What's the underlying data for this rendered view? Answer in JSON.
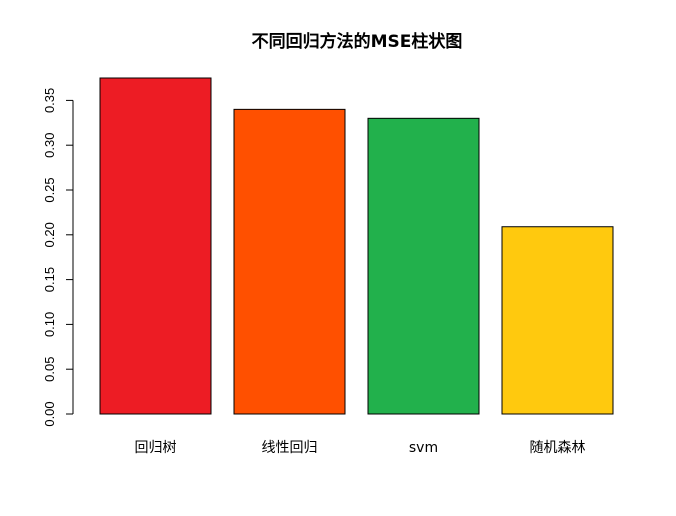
{
  "chart_data": {
    "type": "bar",
    "title": "不同回归方法的MSE柱状图",
    "xlabel": "",
    "ylabel": "",
    "categories": [
      "回归树",
      "线性回归",
      "svm",
      "随机森林"
    ],
    "values": [
      0.375,
      0.34,
      0.33,
      0.209
    ],
    "colors": [
      "#ED1C24",
      "#FF5000",
      "#22B14C",
      "#FFC90E"
    ],
    "ylim": [
      0,
      0.375
    ],
    "y_ticks": [
      0.0,
      0.05,
      0.1,
      0.15,
      0.2,
      0.25,
      0.3,
      0.35
    ],
    "y_tick_labels": [
      "0.00",
      "0.05",
      "0.10",
      "0.15",
      "0.20",
      "0.25",
      "0.30",
      "0.35"
    ],
    "grid": false,
    "legend": "none"
  }
}
